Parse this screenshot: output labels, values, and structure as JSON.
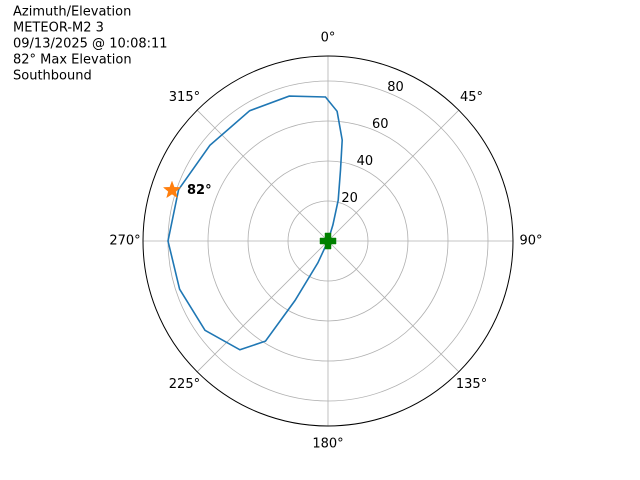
{
  "chart_data": {
    "type": "polar",
    "title": [
      "Azimuth/Elevation",
      "METEOR-M2 3",
      "09/13/2025 @ 10:08:11",
      "82° Max Elevation",
      "Southbound"
    ],
    "series": [
      {
        "color": "#1f77b4",
        "marker": "line",
        "x": [
          0,
          17,
          14,
          10,
          8,
          4,
          359,
          345,
          329,
          309,
          289,
          270,
          252,
          234,
          219,
          212,
          209,
          205,
          0
        ],
        "values": [
          0,
          8.4,
          21,
          36,
          51,
          65,
          72,
          75,
          76,
          76,
          79,
          80,
          78,
          76,
          70,
          59,
          34,
          12,
          0
        ]
      },
      {
        "color": "#ff7f0e",
        "marker": "star",
        "x": [
          288
        ],
        "values": [
          82
        ],
        "value_labels": [
          "82°"
        ]
      },
      {
        "color": "#008000",
        "marker": "plus",
        "x": [
          0
        ],
        "values": [
          0
        ]
      }
    ],
    "ylim": [
      0,
      92.5
    ],
    "yticks": [
      20,
      40,
      60,
      80
    ],
    "xticks": [
      {
        "value": 0,
        "label": "0°"
      },
      {
        "value": 45,
        "label": "45°"
      },
      {
        "value": 90,
        "label": "90°"
      },
      {
        "value": 135,
        "label": "135°"
      },
      {
        "value": 180,
        "label": "180°"
      },
      {
        "value": 225,
        "label": "225°"
      },
      {
        "value": 270,
        "label": "270°"
      },
      {
        "value": 315,
        "label": "315°"
      }
    ],
    "grid": true
  }
}
